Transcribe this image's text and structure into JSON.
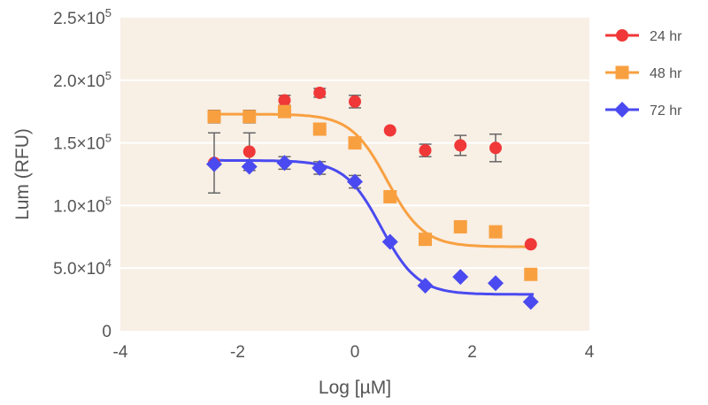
{
  "chart_data": {
    "type": "scatter",
    "title": "",
    "xlabel": "Log [µM]",
    "ylabel": "Lum (RFU)",
    "xlim": [
      -4,
      4
    ],
    "ylim": [
      0,
      250000
    ],
    "xticks": [
      -4,
      -2,
      0,
      2,
      4
    ],
    "xtick_labels": [
      "-4",
      "-2",
      "0",
      "2",
      "4"
    ],
    "yticks": [
      0,
      50000,
      100000,
      150000,
      200000,
      250000
    ],
    "ytick_labels": [
      {
        "mant": "0",
        "exp": ""
      },
      {
        "mant": "5.0×10",
        "exp": "4"
      },
      {
        "mant": "1.0×10",
        "exp": "5"
      },
      {
        "mant": "1.5×10",
        "exp": "5"
      },
      {
        "mant": "2.0×10",
        "exp": "5"
      },
      {
        "mant": "2.5×10",
        "exp": "5"
      }
    ],
    "grid": "horizontal",
    "plot_background": "#f8efe5",
    "legend_position": "right",
    "x": [
      -2.4,
      -1.8,
      -1.2,
      -0.6,
      0,
      0.6,
      1.2,
      1.8,
      2.4,
      3.0
    ],
    "series": [
      {
        "name": "24 hr",
        "color": "#f03838",
        "marker": "circle",
        "values": [
          134000,
          143000,
          184000,
          190000,
          183000,
          160000,
          144000,
          148000,
          146000,
          69000
        ],
        "errors": [
          24000,
          15000,
          4000,
          3500,
          5000,
          0,
          5000,
          8000,
          11000,
          0
        ],
        "fit": null
      },
      {
        "name": "48 hr",
        "color": "#f8a040",
        "marker": "square",
        "values": [
          171000,
          171000,
          175000,
          161000,
          150000,
          107000,
          73000,
          83000,
          79000,
          45000
        ],
        "errors": [
          5000,
          5000,
          0,
          0,
          0,
          0,
          0,
          0,
          0,
          0
        ],
        "fit": {
          "top": 173000,
          "bottom": 67000,
          "logIC50": 0.55,
          "hill": 1.4
        }
      },
      {
        "name": "72 hr",
        "color": "#4a4af0",
        "marker": "diamond",
        "values": [
          133000,
          131000,
          134000,
          130000,
          119000,
          71000,
          36000,
          43000,
          38000,
          23000
        ],
        "errors": [
          0,
          0,
          5000,
          5000,
          5000,
          0,
          0,
          0,
          0,
          0
        ],
        "fit": {
          "top": 136000,
          "bottom": 29000,
          "logIC50": 0.45,
          "hill": 1.4
        }
      }
    ]
  }
}
